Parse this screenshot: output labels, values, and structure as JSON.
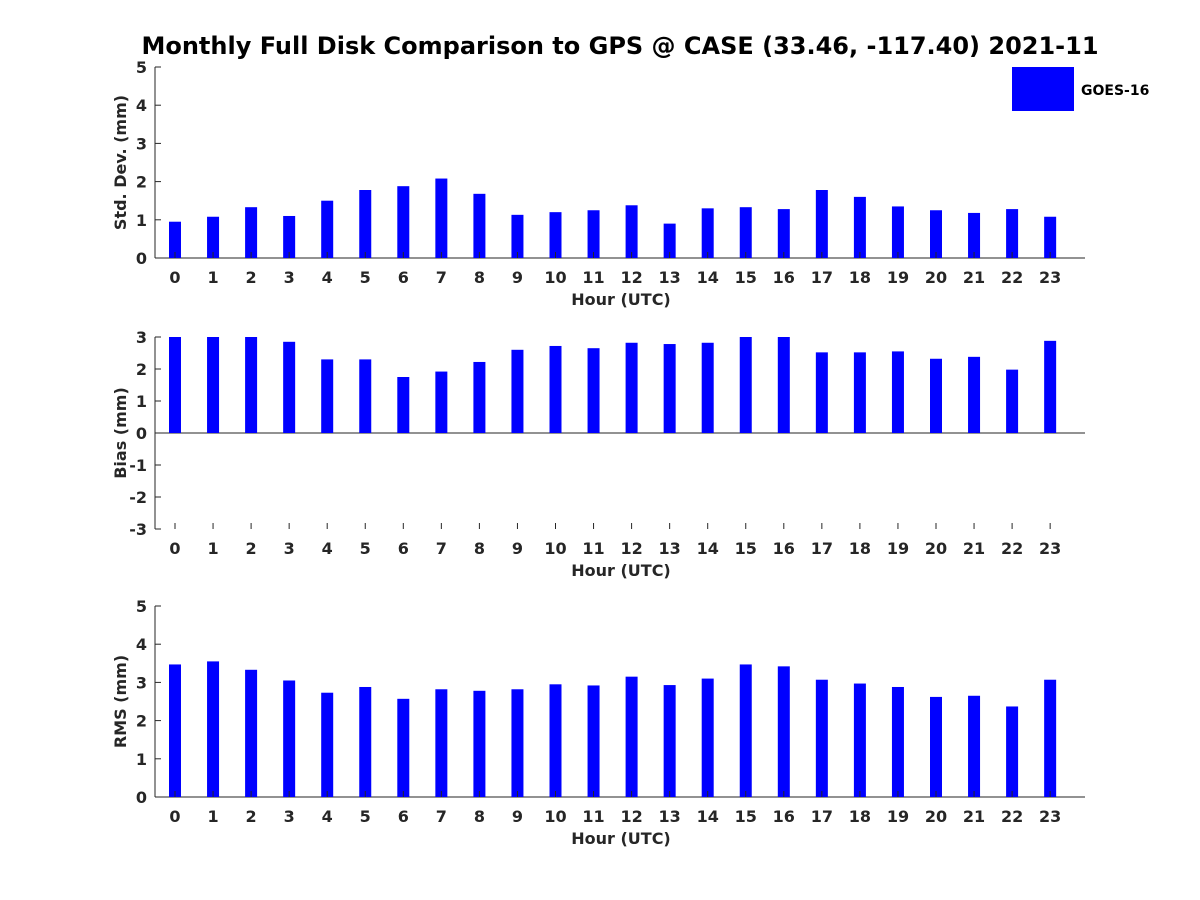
{
  "title": "Monthly Full Disk Comparison to GPS @ CASE (33.46, -117.40) 2021-11",
  "legend": {
    "label": "GOES-16",
    "color": "#0000ff",
    "placement": "top-right"
  },
  "chart_data": [
    {
      "type": "bar",
      "name": "std-dev",
      "xlabel": "Hour (UTC)",
      "ylabel": "Std. Dev. (mm)",
      "ylim": [
        0,
        5
      ],
      "yticks": [
        0,
        1,
        2,
        3,
        4,
        5
      ],
      "categories": [
        "0",
        "1",
        "2",
        "3",
        "4",
        "5",
        "6",
        "7",
        "8",
        "9",
        "10",
        "11",
        "12",
        "13",
        "14",
        "15",
        "16",
        "17",
        "18",
        "19",
        "20",
        "21",
        "22",
        "23"
      ],
      "series": [
        {
          "name": "GOES-16",
          "values": [
            0.95,
            1.08,
            1.33,
            1.1,
            1.5,
            1.78,
            1.88,
            2.08,
            1.68,
            1.13,
            1.2,
            1.25,
            1.38,
            0.9,
            1.3,
            1.33,
            1.28,
            1.78,
            1.6,
            1.35,
            1.25,
            1.18,
            1.28,
            1.08
          ]
        }
      ]
    },
    {
      "type": "bar",
      "name": "bias",
      "xlabel": "Hour (UTC)",
      "ylabel": "Bias (mm)",
      "ylim": [
        -3,
        3
      ],
      "yticks": [
        -3,
        -2,
        -1,
        0,
        1,
        2,
        3
      ],
      "categories": [
        "0",
        "1",
        "2",
        "3",
        "4",
        "5",
        "6",
        "7",
        "8",
        "9",
        "10",
        "11",
        "12",
        "13",
        "14",
        "15",
        "16",
        "17",
        "18",
        "19",
        "20",
        "21",
        "22",
        "23"
      ],
      "series": [
        {
          "name": "GOES-16",
          "values": [
            3.0,
            3.0,
            3.0,
            2.85,
            2.3,
            2.3,
            1.75,
            1.92,
            2.22,
            2.6,
            2.72,
            2.65,
            2.82,
            2.78,
            2.82,
            3.0,
            3.0,
            2.52,
            2.52,
            2.55,
            2.32,
            2.38,
            1.98,
            2.88
          ]
        }
      ]
    },
    {
      "type": "bar",
      "name": "rms",
      "xlabel": "Hour (UTC)",
      "ylabel": "RMS (mm)",
      "ylim": [
        0,
        5
      ],
      "yticks": [
        0,
        1,
        2,
        3,
        4,
        5
      ],
      "categories": [
        "0",
        "1",
        "2",
        "3",
        "4",
        "5",
        "6",
        "7",
        "8",
        "9",
        "10",
        "11",
        "12",
        "13",
        "14",
        "15",
        "16",
        "17",
        "18",
        "19",
        "20",
        "21",
        "22",
        "23"
      ],
      "series": [
        {
          "name": "GOES-16",
          "values": [
            3.47,
            3.55,
            3.33,
            3.05,
            2.73,
            2.88,
            2.57,
            2.82,
            2.78,
            2.82,
            2.95,
            2.92,
            3.15,
            2.93,
            3.1,
            3.47,
            3.42,
            3.07,
            2.97,
            2.88,
            2.62,
            2.65,
            2.37,
            3.07
          ]
        }
      ]
    }
  ]
}
